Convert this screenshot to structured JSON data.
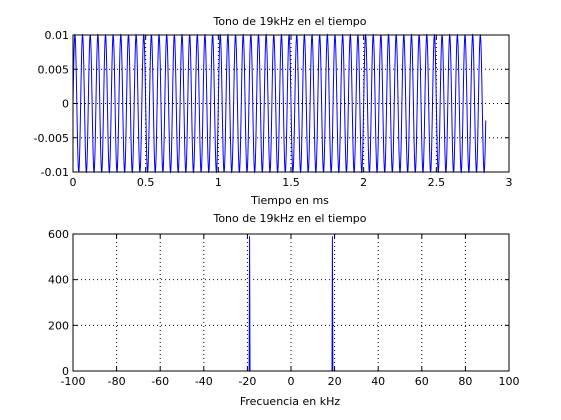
{
  "chart_data": [
    {
      "type": "line",
      "title": "Tono de 19kHz en el tiempo",
      "xlabel": "Tiempo en ms",
      "ylabel": "",
      "xlim": [
        0,
        3
      ],
      "ylim": [
        -0.01,
        0.01
      ],
      "x_ticks": [
        0,
        0.5,
        1,
        1.5,
        2,
        2.5,
        3
      ],
      "y_ticks": [
        -0.01,
        -0.005,
        0,
        0.005,
        0.01
      ],
      "x_tick_labels": [
        "0",
        "0.5",
        "1",
        "1.5",
        "2",
        "2.5",
        "3"
      ],
      "y_tick_labels": [
        "-0.01",
        "-0.005",
        "0",
        "0.005",
        "0.01"
      ],
      "grid": true,
      "series": [
        {
          "color": "#0000ff",
          "frequency_khz": 19,
          "amplitude": 0.01,
          "t_start_ms": 0,
          "t_end_ms": 2.84
        }
      ]
    },
    {
      "type": "line",
      "title": "Tono de 19kHz en el tiempo",
      "xlabel": "Frecuencia en kHz",
      "ylabel": "",
      "xlim": [
        -100,
        100
      ],
      "ylim": [
        0,
        600
      ],
      "x_ticks": [
        -100,
        -80,
        -60,
        -40,
        -20,
        0,
        20,
        40,
        60,
        80,
        100
      ],
      "y_ticks": [
        0,
        200,
        400,
        600
      ],
      "x_tick_labels": [
        "-100",
        "-80",
        "-60",
        "-40",
        "-20",
        "0",
        "20",
        "40",
        "60",
        "80",
        "100"
      ],
      "y_tick_labels": [
        "0",
        "200",
        "400",
        "600"
      ],
      "grid": true,
      "series": [
        {
          "color": "#0000ff",
          "x": [
            -88.2,
            -19.2,
            -19,
            -18.8,
            18.8,
            19,
            19.2,
            88.2
          ],
          "y": [
            0,
            0,
            590,
            0,
            0,
            590,
            0,
            0
          ]
        }
      ]
    }
  ]
}
